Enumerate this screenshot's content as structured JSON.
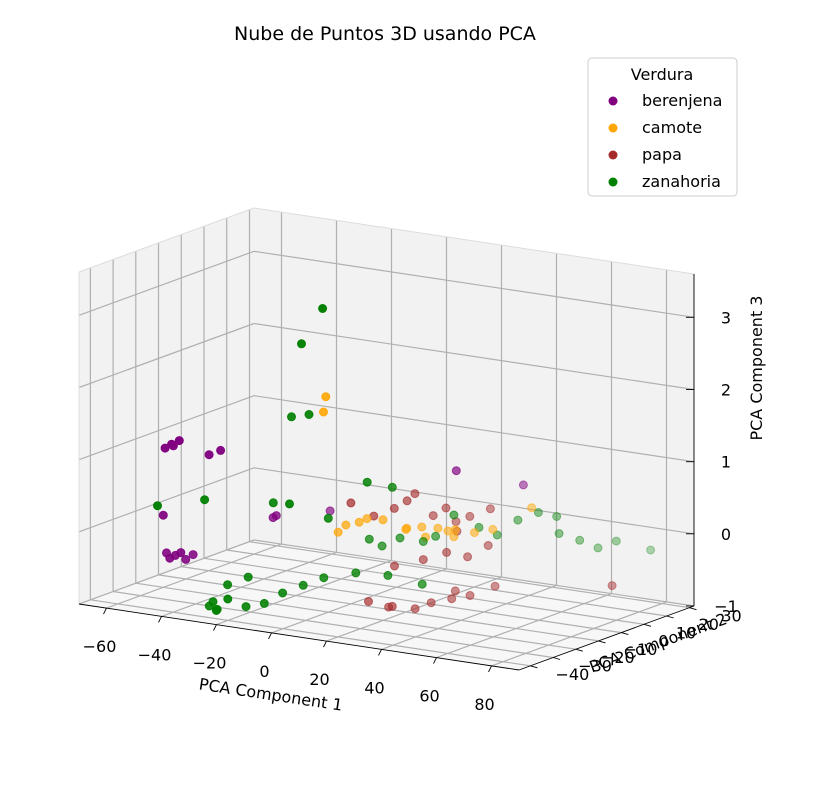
{
  "chart_data": {
    "type": "scatter",
    "projection": "3d",
    "title": "Nube de Puntos 3D usando PCA",
    "xlabel": "PCA Component 1",
    "ylabel": "PCA Component 2",
    "zlabel": "PCA Component 3",
    "xlim": [
      -70,
      90
    ],
    "ylim": [
      -45,
      32
    ],
    "zlim": [
      -1,
      3.6
    ],
    "xticks": [
      -60,
      -40,
      -20,
      0,
      20,
      40,
      60,
      80
    ],
    "yticks": [
      -40,
      -30,
      -20,
      -10,
      0,
      10,
      20,
      30
    ],
    "zticks": [
      -1,
      0,
      1,
      2,
      3
    ],
    "xtick_labels": [
      "−60",
      "−40",
      "−20",
      "0",
      "20",
      "40",
      "60",
      "80"
    ],
    "ytick_labels": [
      "−40",
      "−30",
      "−20",
      "−10",
      "0",
      "10",
      "20",
      "30"
    ],
    "ztick_labels": [
      "−1",
      "0",
      "1",
      "2",
      "3"
    ],
    "grid": true,
    "legend": {
      "title": "Verdura",
      "placement": "top-right"
    },
    "series": [
      {
        "name": "berenjena",
        "color": "#800080",
        "points": [
          [
            -61,
            -18,
            0.9
          ],
          [
            -58,
            -18,
            0.95
          ],
          [
            -57,
            -20,
            1.0
          ],
          [
            -55,
            -19,
            1.05
          ],
          [
            -60,
            -20,
            0.0
          ],
          [
            -58,
            -21,
            -0.5
          ],
          [
            -56,
            -22,
            -0.55
          ],
          [
            -54,
            -22,
            -0.5
          ],
          [
            -52,
            -22,
            -0.45
          ],
          [
            -51,
            -21,
            -0.55
          ],
          [
            -50,
            -19,
            -0.5
          ],
          [
            -45,
            -18,
            0.9
          ],
          [
            -40,
            -19,
            1.0
          ],
          [
            -30,
            -8,
            0.0
          ],
          [
            -28,
            -9,
            0.05
          ],
          [
            -20,
            5,
            0.0
          ],
          [
            30,
            0,
            0.9
          ],
          [
            42,
            15,
            0.6
          ]
        ]
      },
      {
        "name": "camote",
        "color": "#ffa500",
        "points": [
          [
            -10,
            -9,
            1.8
          ],
          [
            -10,
            -10,
            1.6
          ],
          [
            -8,
            -6,
            -0.1
          ],
          [
            -6,
            -5,
            0.0
          ],
          [
            -2,
            -4,
            0.05
          ],
          [
            0,
            -3,
            0.1
          ],
          [
            5,
            -2,
            0.1
          ],
          [
            10,
            2,
            -0.05
          ],
          [
            12,
            0,
            0.0
          ],
          [
            15,
            3,
            0.0
          ],
          [
            18,
            1,
            -0.1
          ],
          [
            20,
            4,
            0.0
          ],
          [
            22,
            6,
            -0.05
          ],
          [
            25,
            5,
            -0.1
          ],
          [
            28,
            2,
            0.05
          ],
          [
            30,
            8,
            -0.05
          ],
          [
            35,
            10,
            0.0
          ],
          [
            45,
            15,
            0.3
          ]
        ]
      },
      {
        "name": "papa",
        "color": "#a52a2a",
        "points": [
          [
            -5,
            -4,
            0.3
          ],
          [
            0,
            0,
            0.1
          ],
          [
            5,
            3,
            0.2
          ],
          [
            8,
            5,
            0.3
          ],
          [
            10,
            6,
            0.4
          ],
          [
            15,
            8,
            0.1
          ],
          [
            18,
            10,
            0.2
          ],
          [
            20,
            12,
            0.0
          ],
          [
            22,
            10,
            -0.1
          ],
          [
            25,
            12,
            0.1
          ],
          [
            30,
            15,
            0.2
          ],
          [
            12,
            -8,
            -1.0
          ],
          [
            8,
            -12,
            -0.9
          ],
          [
            15,
            -10,
            -0.95
          ],
          [
            20,
            -6,
            -1.0
          ],
          [
            25,
            -5,
            -0.9
          ],
          [
            30,
            -2,
            -0.85
          ],
          [
            35,
            0,
            -0.8
          ],
          [
            40,
            5,
            -0.7
          ],
          [
            28,
            2,
            -0.8
          ],
          [
            85,
            2,
            -0.4
          ],
          [
            10,
            -3,
            -0.5
          ],
          [
            18,
            0,
            -0.4
          ],
          [
            24,
            3,
            -0.3
          ],
          [
            30,
            5,
            -0.35
          ],
          [
            35,
            8,
            -0.2
          ]
        ]
      },
      {
        "name": "zanahoria",
        "color": "#008000",
        "points": [
          [
            -58,
            -25,
            0.2
          ],
          [
            -45,
            -20,
            0.3
          ],
          [
            -18,
            -10,
            2.5
          ],
          [
            -12,
            -8,
            3.0
          ],
          [
            -20,
            -12,
            1.5
          ],
          [
            -12,
            -14,
            1.6
          ],
          [
            -20,
            -20,
            0.4
          ],
          [
            -10,
            -25,
            0.5
          ],
          [
            0,
            -20,
            0.3
          ],
          [
            10,
            -15,
            0.8
          ],
          [
            15,
            -10,
            0.7
          ],
          [
            5,
            -8,
            -0.1
          ],
          [
            8,
            -6,
            -0.2
          ],
          [
            12,
            -3,
            -0.1
          ],
          [
            18,
            0,
            -0.15
          ],
          [
            20,
            3,
            -0.1
          ],
          [
            25,
            5,
            0.2
          ],
          [
            30,
            10,
            0.0
          ],
          [
            35,
            12,
            -0.1
          ],
          [
            40,
            15,
            0.1
          ],
          [
            45,
            18,
            0.2
          ],
          [
            50,
            20,
            0.15
          ],
          [
            55,
            15,
            0.0
          ],
          [
            60,
            18,
            -0.1
          ],
          [
            65,
            20,
            -0.2
          ],
          [
            70,
            22,
            -0.1
          ],
          [
            80,
            25,
            -0.2
          ],
          [
            -35,
            -30,
            -1.0
          ],
          [
            -32,
            -32,
            -0.9
          ],
          [
            -30,
            -33,
            -1.0
          ],
          [
            -28,
            -35,
            -0.95
          ],
          [
            -25,
            -34,
            -0.8
          ],
          [
            -20,
            -32,
            -0.9
          ],
          [
            -15,
            -30,
            -0.85
          ],
          [
            -10,
            -28,
            -0.7
          ],
          [
            -5,
            -25,
            -0.6
          ],
          [
            0,
            -22,
            -0.5
          ],
          [
            10,
            -20,
            -0.4
          ],
          [
            20,
            -18,
            -0.4
          ],
          [
            30,
            -15,
            -0.5
          ],
          [
            -30,
            -28,
            -0.7
          ],
          [
            -25,
            -25,
            -0.6
          ]
        ]
      }
    ]
  }
}
